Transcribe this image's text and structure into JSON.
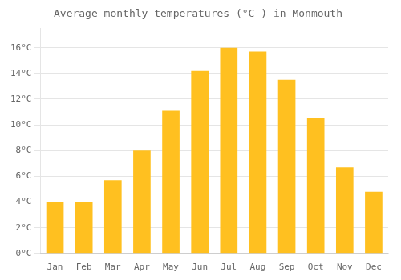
{
  "chart_data": {
    "type": "bar",
    "title": "Average monthly temperatures (°C ) in Monmouth",
    "categories": [
      "Jan",
      "Feb",
      "Mar",
      "Apr",
      "May",
      "Jun",
      "Jul",
      "Aug",
      "Sep",
      "Oct",
      "Nov",
      "Dec"
    ],
    "values": [
      4.0,
      4.0,
      5.7,
      8.0,
      11.1,
      14.2,
      16.0,
      15.7,
      13.5,
      10.5,
      6.7,
      4.8
    ],
    "color": "#FFC020",
    "ylim": [
      0,
      17.5
    ],
    "yticks": [
      {
        "value": 0,
        "label": "0°C"
      },
      {
        "value": 2,
        "label": "2°C"
      },
      {
        "value": 4,
        "label": "4°C"
      },
      {
        "value": 6,
        "label": "6°C"
      },
      {
        "value": 8,
        "label": "8°C"
      },
      {
        "value": 10,
        "label": "10°C"
      },
      {
        "value": 12,
        "label": "12°C"
      },
      {
        "value": 14,
        "label": "14°C"
      },
      {
        "value": 16,
        "label": "16°C"
      }
    ],
    "grid": true
  }
}
